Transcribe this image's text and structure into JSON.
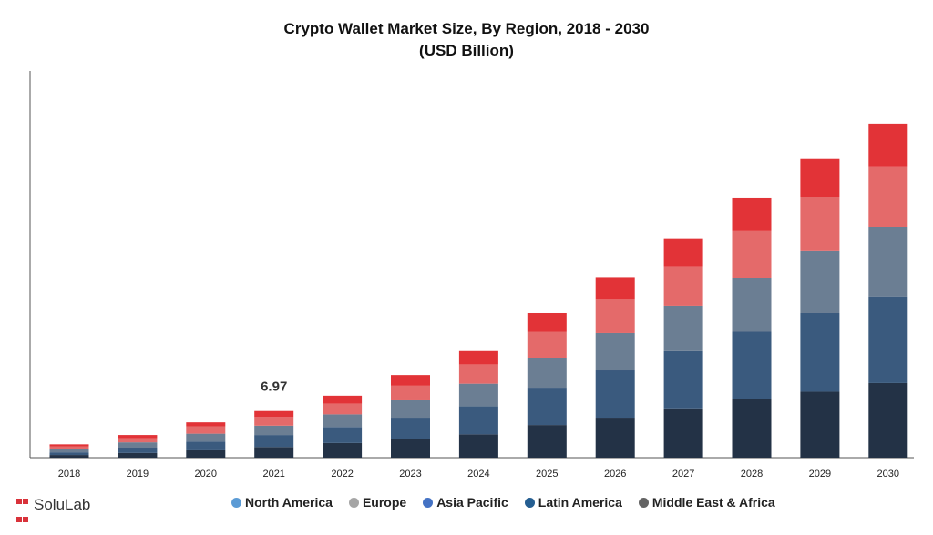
{
  "title_line1": "Crypto Wallet Market Size, By Region, 2018 - 2030",
  "title_line2": "(USD Billion)",
  "logo_text": "SoluLab",
  "chart_data": {
    "type": "bar",
    "stacked": true,
    "categories": [
      "2018",
      "2019",
      "2020",
      "2021",
      "2022",
      "2023",
      "2024",
      "2025",
      "2026",
      "2027",
      "2028",
      "2029",
      "2030"
    ],
    "series": [
      {
        "name": "Middle East & Africa",
        "color": "#233246",
        "values": [
          0.4,
          0.7,
          1.1,
          1.6,
          2.2,
          2.8,
          3.5,
          4.9,
          6.0,
          7.4,
          8.8,
          9.9,
          11.2
        ]
      },
      {
        "name": "Latin America",
        "color": "#3a5a7e",
        "values": [
          0.4,
          0.8,
          1.3,
          1.8,
          2.4,
          3.2,
          4.2,
          5.6,
          7.1,
          8.6,
          10.1,
          11.8,
          13.0
        ]
      },
      {
        "name": "Asia Pacific",
        "color": "#6b7e93",
        "values": [
          0.5,
          0.8,
          1.2,
          1.4,
          1.9,
          2.6,
          3.4,
          4.5,
          5.6,
          6.8,
          8.1,
          9.3,
          10.4
        ]
      },
      {
        "name": "Europe",
        "color": "#e46a6a",
        "values": [
          0.4,
          0.6,
          1.1,
          1.3,
          1.6,
          2.2,
          2.9,
          3.9,
          5.0,
          5.9,
          7.0,
          8.1,
          9.1
        ]
      },
      {
        "name": "North America",
        "color": "#e23337",
        "values": [
          0.3,
          0.5,
          0.6,
          0.9,
          1.2,
          1.6,
          2.0,
          2.8,
          3.4,
          4.1,
          4.9,
          5.7,
          6.4
        ]
      }
    ],
    "annotations": [
      {
        "category": "2021",
        "text": "6.97"
      }
    ],
    "ylim": [
      0,
      58
    ],
    "grid": false,
    "legend_position": "bottom",
    "legend": [
      {
        "name": "North America",
        "color": "#5b9bd5"
      },
      {
        "name": "Europe",
        "color": "#a5a5a5"
      },
      {
        "name": "Asia Pacific",
        "color": "#4472c4"
      },
      {
        "name": "Latin America",
        "color": "#255e91"
      },
      {
        "name": "Middle East & Africa",
        "color": "#636363"
      }
    ]
  }
}
